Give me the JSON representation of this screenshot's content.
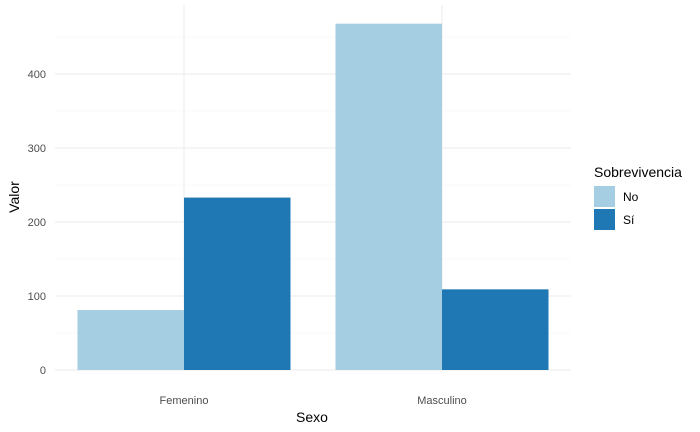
{
  "chart_data": {
    "type": "bar",
    "xlabel": "Sexo",
    "ylabel": "Valor",
    "categories": [
      "Femenino",
      "Masculino"
    ],
    "series": [
      {
        "name": "No",
        "values": [
          81,
          468
        ],
        "color": "#a6cee3"
      },
      {
        "name": "Sí",
        "values": [
          233,
          109
        ],
        "color": "#1f78b4"
      }
    ],
    "ylim": [
      0,
      490
    ],
    "yticks": [
      0,
      100,
      200,
      300,
      400
    ],
    "grid": true,
    "legend": {
      "title": "Sobrevivencia",
      "placement": "right"
    }
  }
}
